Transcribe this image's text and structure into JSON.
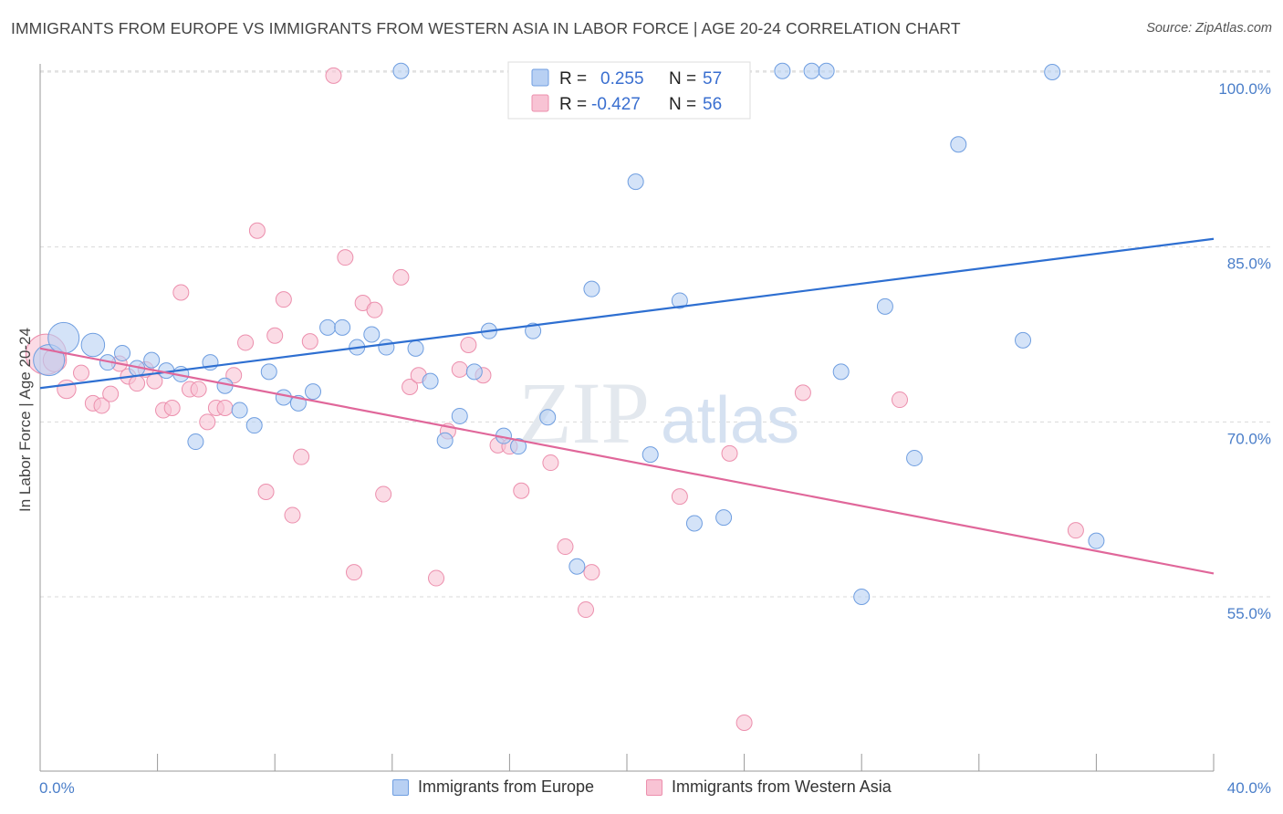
{
  "title": "IMMIGRANTS FROM EUROPE VS IMMIGRANTS FROM WESTERN ASIA IN LABOR FORCE | AGE 20-24 CORRELATION CHART",
  "source": "Source: ZipAtlas.com",
  "watermark": {
    "zip": "ZIP",
    "atlas": "atlas"
  },
  "legend_box": {
    "rows": [
      {
        "r_label": "R =",
        "r_value": "0.255",
        "n_label": "N =",
        "n_value": "57"
      },
      {
        "r_label": "R =",
        "r_value": "-0.427",
        "n_label": "N =",
        "n_value": "56"
      }
    ]
  },
  "bottom_legend": [
    {
      "label": "Immigrants from Europe"
    },
    {
      "label": "Immigrants from Western Asia"
    }
  ],
  "colors": {
    "europe_fill": "#b8d0f3",
    "europe_stroke": "#6f9ee0",
    "europe_line": "#2e6fd1",
    "wasia_fill": "#f8c3d4",
    "wasia_stroke": "#ec8fad",
    "wasia_line": "#e0679a",
    "grid": "#d9d9d9",
    "tick_text": "#4a7ec9"
  },
  "chart_data": {
    "type": "scatter",
    "title": "IMMIGRANTS FROM EUROPE VS IMMIGRANTS FROM WESTERN ASIA IN LABOR FORCE | AGE 20-24 CORRELATION CHART",
    "xlabel": "",
    "ylabel": "In Labor Force | Age 20-24",
    "xlim": [
      0,
      40
    ],
    "ylim": [
      40,
      102
    ],
    "x_tick_labels": [
      "0.0%",
      "40.0%"
    ],
    "y_ticks": [
      55,
      70,
      85,
      100
    ],
    "y_tick_labels": [
      "55.0%",
      "70.0%",
      "85.0%",
      "100.0%"
    ],
    "grid": true,
    "series": [
      {
        "name": "Immigrants from Europe",
        "r": 0.255,
        "n": 57,
        "trend": {
          "x": [
            0,
            40
          ],
          "y": [
            72.9,
            85.7
          ]
        },
        "points": [
          {
            "x": 0.3,
            "y": 75.3,
            "s": 2
          },
          {
            "x": 0.8,
            "y": 77.2,
            "s": 2
          },
          {
            "x": 1.8,
            "y": 76.6,
            "s": 1.5
          },
          {
            "x": 2.3,
            "y": 75.1,
            "s": 1
          },
          {
            "x": 2.8,
            "y": 75.9,
            "s": 1
          },
          {
            "x": 3.3,
            "y": 74.6,
            "s": 1
          },
          {
            "x": 3.8,
            "y": 75.3,
            "s": 1
          },
          {
            "x": 4.3,
            "y": 74.4,
            "s": 1
          },
          {
            "x": 4.8,
            "y": 74.1,
            "s": 1
          },
          {
            "x": 5.3,
            "y": 68.3,
            "s": 1
          },
          {
            "x": 5.8,
            "y": 75.1,
            "s": 1
          },
          {
            "x": 6.3,
            "y": 73.1,
            "s": 1
          },
          {
            "x": 6.8,
            "y": 71.0,
            "s": 1
          },
          {
            "x": 7.3,
            "y": 69.7,
            "s": 1
          },
          {
            "x": 7.8,
            "y": 74.3,
            "s": 1
          },
          {
            "x": 8.3,
            "y": 72.1,
            "s": 1
          },
          {
            "x": 8.8,
            "y": 71.6,
            "s": 1
          },
          {
            "x": 9.3,
            "y": 72.6,
            "s": 1
          },
          {
            "x": 9.8,
            "y": 78.1,
            "s": 1
          },
          {
            "x": 10.3,
            "y": 78.1,
            "s": 1
          },
          {
            "x": 10.8,
            "y": 76.4,
            "s": 1
          },
          {
            "x": 11.3,
            "y": 77.5,
            "s": 1
          },
          {
            "x": 11.8,
            "y": 76.4,
            "s": 1
          },
          {
            "x": 12.3,
            "y": 100.1,
            "s": 1
          },
          {
            "x": 12.8,
            "y": 76.3,
            "s": 1
          },
          {
            "x": 13.3,
            "y": 73.5,
            "s": 1
          },
          {
            "x": 13.8,
            "y": 68.4,
            "s": 1
          },
          {
            "x": 14.3,
            "y": 70.5,
            "s": 1
          },
          {
            "x": 14.8,
            "y": 74.3,
            "s": 1
          },
          {
            "x": 15.3,
            "y": 77.8,
            "s": 1
          },
          {
            "x": 15.8,
            "y": 68.8,
            "s": 1
          },
          {
            "x": 16.3,
            "y": 67.9,
            "s": 1
          },
          {
            "x": 16.8,
            "y": 77.8,
            "s": 1
          },
          {
            "x": 17.3,
            "y": 70.4,
            "s": 1
          },
          {
            "x": 17.8,
            "y": 100.0,
            "s": 1
          },
          {
            "x": 18.3,
            "y": 57.6,
            "s": 1
          },
          {
            "x": 18.8,
            "y": 81.4,
            "s": 1
          },
          {
            "x": 19.3,
            "y": 100.1,
            "s": 1
          },
          {
            "x": 19.8,
            "y": 100.1,
            "s": 1
          },
          {
            "x": 20.3,
            "y": 90.6,
            "s": 1
          },
          {
            "x": 20.8,
            "y": 67.2,
            "s": 1
          },
          {
            "x": 21.3,
            "y": 100.1,
            "s": 1
          },
          {
            "x": 21.8,
            "y": 80.4,
            "s": 1
          },
          {
            "x": 22.3,
            "y": 61.3,
            "s": 1
          },
          {
            "x": 22.8,
            "y": 100.1,
            "s": 1
          },
          {
            "x": 23.3,
            "y": 61.8,
            "s": 1
          },
          {
            "x": 23.8,
            "y": 100.1,
            "s": 1
          },
          {
            "x": 25.3,
            "y": 100.1,
            "s": 1
          },
          {
            "x": 26.3,
            "y": 100.1,
            "s": 1
          },
          {
            "x": 26.8,
            "y": 100.1,
            "s": 1
          },
          {
            "x": 27.3,
            "y": 74.3,
            "s": 1
          },
          {
            "x": 28.0,
            "y": 55.0,
            "s": 1
          },
          {
            "x": 28.8,
            "y": 79.9,
            "s": 1
          },
          {
            "x": 29.8,
            "y": 66.9,
            "s": 1
          },
          {
            "x": 31.3,
            "y": 93.8,
            "s": 1
          },
          {
            "x": 33.5,
            "y": 77.0,
            "s": 1
          },
          {
            "x": 34.5,
            "y": 100.0,
            "s": 1
          },
          {
            "x": 36.0,
            "y": 59.8,
            "s": 1
          }
        ]
      },
      {
        "name": "Immigrants from Western Asia",
        "r": -0.427,
        "n": 56,
        "trend": {
          "x": [
            0,
            40
          ],
          "y": [
            76.3,
            57.0
          ]
        },
        "points": [
          {
            "x": 0.2,
            "y": 75.8,
            "s": 2.6
          },
          {
            "x": 0.5,
            "y": 75.3,
            "s": 1.5
          },
          {
            "x": 0.9,
            "y": 72.8,
            "s": 1.2
          },
          {
            "x": 1.4,
            "y": 74.2,
            "s": 1
          },
          {
            "x": 1.8,
            "y": 71.6,
            "s": 1
          },
          {
            "x": 2.1,
            "y": 71.4,
            "s": 1
          },
          {
            "x": 2.4,
            "y": 72.4,
            "s": 1
          },
          {
            "x": 2.7,
            "y": 75.0,
            "s": 1
          },
          {
            "x": 3.0,
            "y": 73.9,
            "s": 1
          },
          {
            "x": 3.3,
            "y": 73.3,
            "s": 1
          },
          {
            "x": 3.6,
            "y": 74.5,
            "s": 1
          },
          {
            "x": 3.9,
            "y": 73.5,
            "s": 1
          },
          {
            "x": 4.2,
            "y": 71.0,
            "s": 1
          },
          {
            "x": 4.5,
            "y": 71.2,
            "s": 1
          },
          {
            "x": 4.8,
            "y": 81.1,
            "s": 1
          },
          {
            "x": 5.1,
            "y": 72.8,
            "s": 1
          },
          {
            "x": 5.4,
            "y": 72.8,
            "s": 1
          },
          {
            "x": 5.7,
            "y": 70.0,
            "s": 1
          },
          {
            "x": 6.0,
            "y": 71.2,
            "s": 1
          },
          {
            "x": 6.3,
            "y": 71.2,
            "s": 1
          },
          {
            "x": 6.6,
            "y": 74.0,
            "s": 1
          },
          {
            "x": 7.0,
            "y": 76.8,
            "s": 1
          },
          {
            "x": 7.4,
            "y": 86.4,
            "s": 1
          },
          {
            "x": 7.7,
            "y": 64.0,
            "s": 1
          },
          {
            "x": 8.0,
            "y": 77.4,
            "s": 1
          },
          {
            "x": 8.3,
            "y": 80.5,
            "s": 1
          },
          {
            "x": 8.6,
            "y": 62.0,
            "s": 1
          },
          {
            "x": 8.9,
            "y": 67.0,
            "s": 1
          },
          {
            "x": 9.2,
            "y": 76.9,
            "s": 1
          },
          {
            "x": 10.0,
            "y": 99.7,
            "s": 1
          },
          {
            "x": 10.4,
            "y": 84.1,
            "s": 1
          },
          {
            "x": 10.7,
            "y": 57.1,
            "s": 1
          },
          {
            "x": 11.0,
            "y": 80.2,
            "s": 1
          },
          {
            "x": 11.4,
            "y": 79.6,
            "s": 1
          },
          {
            "x": 11.7,
            "y": 63.8,
            "s": 1
          },
          {
            "x": 12.3,
            "y": 82.4,
            "s": 1
          },
          {
            "x": 12.6,
            "y": 73.0,
            "s": 1
          },
          {
            "x": 12.9,
            "y": 74.0,
            "s": 1
          },
          {
            "x": 13.5,
            "y": 56.6,
            "s": 1
          },
          {
            "x": 13.9,
            "y": 69.2,
            "s": 1
          },
          {
            "x": 14.3,
            "y": 74.5,
            "s": 1
          },
          {
            "x": 14.6,
            "y": 76.6,
            "s": 1
          },
          {
            "x": 15.1,
            "y": 74.0,
            "s": 1
          },
          {
            "x": 15.6,
            "y": 68.0,
            "s": 1
          },
          {
            "x": 16.0,
            "y": 67.9,
            "s": 1
          },
          {
            "x": 16.4,
            "y": 64.1,
            "s": 1
          },
          {
            "x": 17.4,
            "y": 66.5,
            "s": 1
          },
          {
            "x": 17.9,
            "y": 59.3,
            "s": 1
          },
          {
            "x": 18.6,
            "y": 53.9,
            "s": 1
          },
          {
            "x": 18.8,
            "y": 57.1,
            "s": 1
          },
          {
            "x": 21.8,
            "y": 63.6,
            "s": 1
          },
          {
            "x": 23.5,
            "y": 67.3,
            "s": 1
          },
          {
            "x": 24.0,
            "y": 44.2,
            "s": 1
          },
          {
            "x": 26.0,
            "y": 72.5,
            "s": 1
          },
          {
            "x": 29.3,
            "y": 71.9,
            "s": 1
          },
          {
            "x": 35.3,
            "y": 60.7,
            "s": 1
          }
        ]
      }
    ]
  }
}
